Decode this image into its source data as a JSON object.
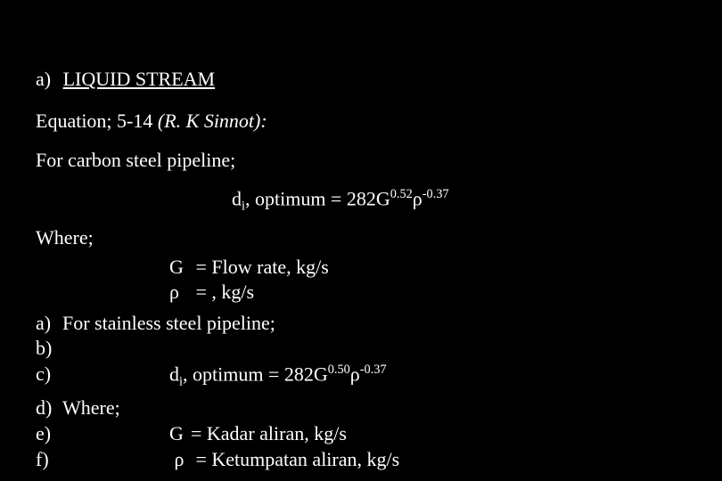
{
  "heading": {
    "prefix": "a)",
    "title": "LIQUID STREAM"
  },
  "equation_ref": {
    "prefix": "Equation; ",
    "num": "5-14 ",
    "author": "(R. K Sinnot):"
  },
  "carbon": {
    "intro": "For carbon steel pipeline;",
    "formula": {
      "var": "d",
      "varsub": "i",
      "mid": ", optimum = 282G",
      "exp1": "0.52",
      "rho": "ρ",
      "exp2": "-0.37"
    }
  },
  "where": "Where;",
  "defs1": {
    "g": {
      "sym": "G",
      "text": "= Flow rate, kg/s"
    },
    "rho": {
      "sym": "ρ",
      "text": "= , kg/s"
    }
  },
  "list": {
    "a": {
      "label": "a)",
      "text": "For stainless steel pipeline;"
    },
    "b": {
      "label": "b)"
    },
    "c": {
      "label": "c)",
      "formula": {
        "var": "d",
        "varsub": "i",
        "mid": ", optimum = 282G",
        "exp1": "0.50",
        "rho": "ρ",
        "exp2": "-0.37"
      }
    },
    "d": {
      "label": "d)",
      "text": "Where;"
    },
    "e": {
      "label": "e)",
      "sym": "G",
      "text": "= Kadar aliran, kg/s"
    },
    "f": {
      "label": "f)",
      "sym": "ρ",
      "text": "= Ketumpatan aliran, kg/s"
    }
  }
}
